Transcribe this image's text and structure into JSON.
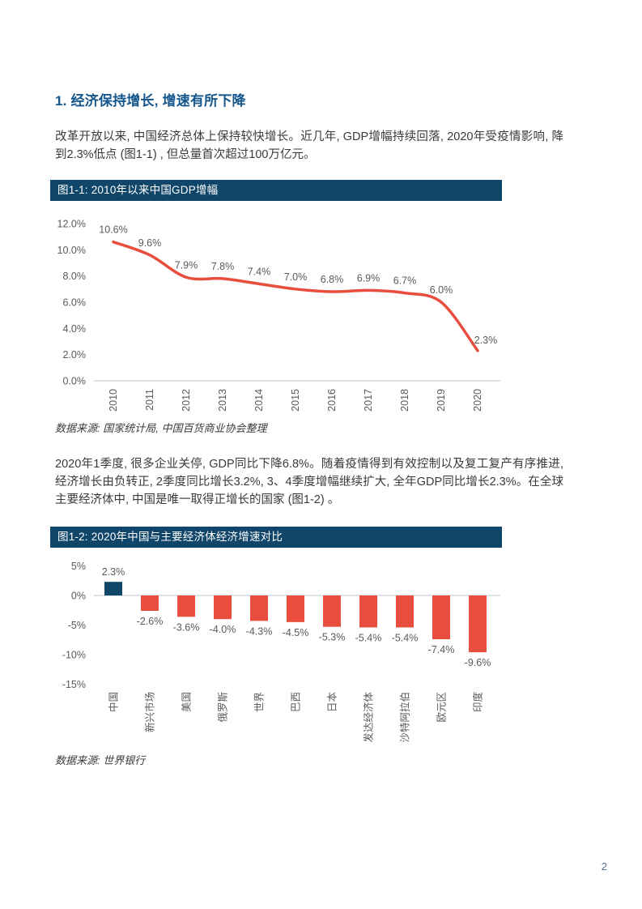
{
  "page": {
    "number": "2"
  },
  "section": {
    "heading": "1. 经济保持增长, 增速有所下降"
  },
  "paragraphs": {
    "p1": "改革开放以来, 中国经济总体上保持较快增长。近几年, GDP增幅持续回落, 2020年受疫情影响, 降到2.3%低点 (图1-1) , 但总量首次超过100万亿元。",
    "p2": "2020年1季度, 很多企业关停, GDP同比下降6.8%。随着疫情得到有效控制以及复工复产有序推进, 经济增长由负转正, 2季度同比增长3.2%, 3、4季度增幅继续扩大, 全年GDP同比增长2.3%。在全球主要经济体中, 中国是唯一取得正增长的国家 (图1-2) 。"
  },
  "figure1": {
    "title": "图1-1: 2010年以来中国GDP增幅",
    "source": "数据来源: 国家统计局, 中国百货商业协会整理"
  },
  "figure2": {
    "title": "图1-2: 2020年中国与主要经济体经济增速对比",
    "source": "数据来源: 世界银行"
  },
  "colors": {
    "heading_blue": "#15568c",
    "header_bar": "#10466a",
    "line_red": "#e84d3e",
    "bar_negative_red": "#e84d3e",
    "bar_positive_blue": "#10466a",
    "axis_line": "#dce3e8",
    "tick_label_gray": "#595959",
    "body_text": "#3a3a3a",
    "page_number": "#54718e"
  },
  "chart_data": [
    {
      "type": "line",
      "title": "图1-1: 2010年以来中国GDP增幅",
      "x": [
        "2010",
        "2011",
        "2012",
        "2013",
        "2014",
        "2015",
        "2016",
        "2017",
        "2018",
        "2019",
        "2020"
      ],
      "values": [
        10.6,
        9.6,
        7.9,
        7.8,
        7.4,
        7.0,
        6.8,
        6.9,
        6.7,
        6.0,
        2.3
      ],
      "labels": [
        "10.6%",
        "9.6%",
        "7.9%",
        "7.8%",
        "7.4%",
        "7.0%",
        "6.8%",
        "6.9%",
        "6.7%",
        "6.0%",
        "2.3%"
      ],
      "ylabel": "",
      "xlabel": "",
      "ylim": [
        0,
        12
      ],
      "yticks": [
        "12.0%",
        "10.0%",
        "8.0%",
        "6.0%",
        "4.0%",
        "2.0%",
        "0.0%"
      ],
      "ytick_values": [
        12,
        10,
        8,
        6,
        4,
        2,
        0
      ],
      "grid": false,
      "legend": "none",
      "line_color": "#e84d3e",
      "smooth": true,
      "source": "数据来源: 国家统计局, 中国百货商业协会整理"
    },
    {
      "type": "bar",
      "title": "图1-2: 2020年中国与主要经济体经济增速对比",
      "categories": [
        "中国",
        "新兴市场",
        "美国",
        "俄罗斯",
        "世界",
        "巴西",
        "日本",
        "发达经济体",
        "沙特阿拉伯",
        "欧元区",
        "印度"
      ],
      "values": [
        2.3,
        -2.6,
        -3.6,
        -4.0,
        -4.3,
        -4.5,
        -5.3,
        -5.4,
        -5.4,
        -7.4,
        -9.6
      ],
      "labels": [
        "2.3%",
        "-2.6%",
        "-3.6%",
        "-4.0%",
        "-4.3%",
        "-4.5%",
        "-5.3%",
        "-5.4%",
        "-5.4%",
        "-7.4%",
        "-9.6%"
      ],
      "ylabel": "",
      "xlabel": "",
      "ylim": [
        -15,
        5
      ],
      "yticks": [
        "5%",
        "0%",
        "-5%",
        "-10%",
        "-15%"
      ],
      "ytick_values": [
        5,
        0,
        -5,
        -10,
        -15
      ],
      "grid": false,
      "legend": "none",
      "positive_color": "#10466a",
      "negative_color": "#e84d3e",
      "source": "数据来源: 世界银行"
    }
  ]
}
